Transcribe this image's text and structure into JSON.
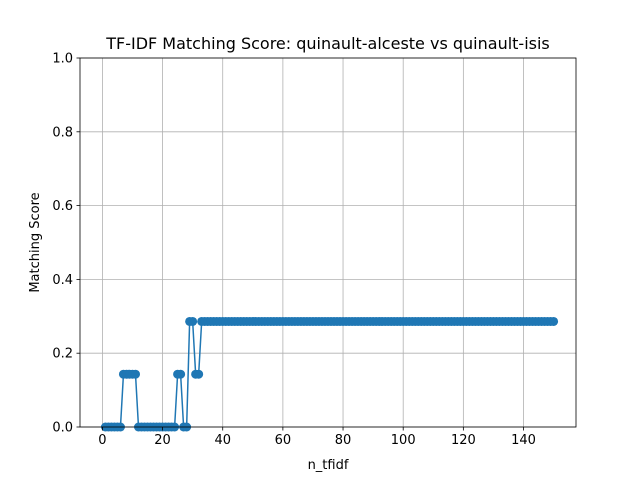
{
  "chart_data": {
    "type": "line",
    "title": "TF-IDF Matching Score: quinault-alceste vs quinault-isis",
    "xlabel": "n_tfidf",
    "ylabel": "Matching Score",
    "xlim": [
      -7.45,
      157.45
    ],
    "ylim": [
      0,
      1.0
    ],
    "xticks": [
      0,
      20,
      40,
      60,
      80,
      100,
      120,
      140
    ],
    "yticks": [
      "0.0",
      "0.2",
      "0.4",
      "0.6",
      "0.8",
      "1.0"
    ],
    "grid": true,
    "legend": "none",
    "marker": "circle",
    "color": "#1f77b4",
    "x_start": 1,
    "x_end": 150,
    "segments": [
      {
        "from": 1,
        "to": 6,
        "y": 0.0
      },
      {
        "from": 7,
        "to": 11,
        "y": 0.143
      },
      {
        "from": 12,
        "to": 24,
        "y": 0.0
      },
      {
        "from": 25,
        "to": 26,
        "y": 0.143
      },
      {
        "from": 27,
        "to": 28,
        "y": 0.0
      },
      {
        "from": 29,
        "to": 30,
        "y": 0.286
      },
      {
        "from": 31,
        "to": 32,
        "y": 0.143
      },
      {
        "from": 33,
        "to": 150,
        "y": 0.286
      }
    ]
  }
}
